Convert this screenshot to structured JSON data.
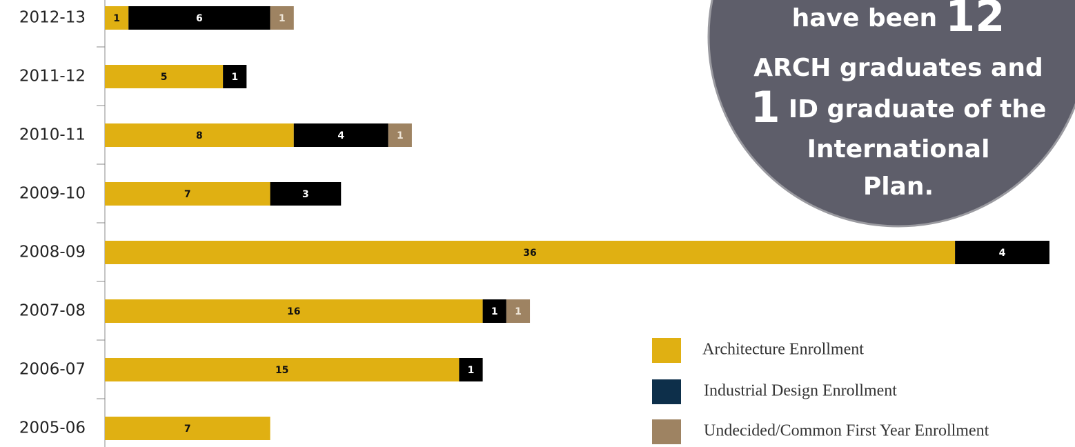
{
  "chart_data": {
    "type": "stacked-bar-horizontal",
    "categories": [
      "2012-13",
      "2011-12",
      "2010-11",
      "2009-10",
      "2008-09",
      "2007-08",
      "2006-07",
      "2005-06"
    ],
    "series": [
      {
        "name": "Architecture Enrollment",
        "color": "#e0b012",
        "legend_color": "#e0b012",
        "label_color": "#111111",
        "values": [
          1,
          5,
          8,
          7,
          36,
          16,
          15,
          7
        ]
      },
      {
        "name": "Industrial Design Enrollment",
        "color": "#000000",
        "legend_color": "#0d2f4a",
        "label_color": "#ffffff",
        "values": [
          6,
          1,
          4,
          3,
          4,
          1,
          1,
          null
        ]
      },
      {
        "name": "Undecided/Common First Year Enrollment",
        "color": "#9e8362",
        "legend_color": "#9e8362",
        "label_color": "#efe6d8",
        "values": [
          1,
          null,
          1,
          null,
          null,
          1,
          null,
          null
        ]
      }
    ],
    "xlim": [
      0,
      40
    ],
    "legend": "bottom-right",
    "annotation": [
      [
        {
          "text": "have been"
        },
        {
          "text": "12",
          "big": true
        }
      ],
      [
        {
          "text": "ARCH graduates and"
        }
      ],
      [
        {
          "text": "1",
          "big": true
        },
        {
          "text": "ID graduate of the"
        }
      ],
      [
        {
          "text": "International"
        }
      ],
      [
        {
          "text": "Plan."
        }
      ]
    ]
  }
}
